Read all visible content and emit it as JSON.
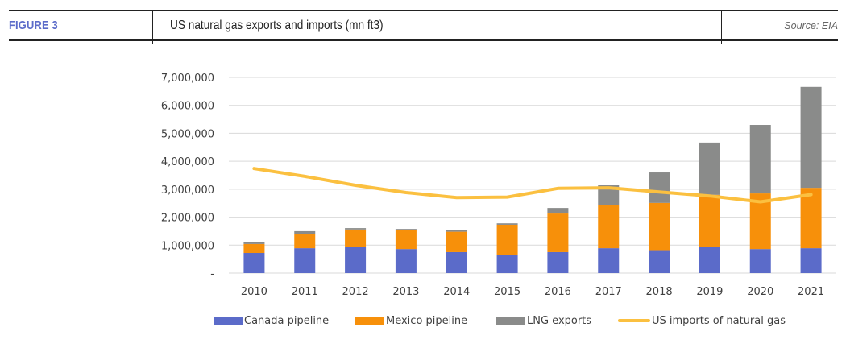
{
  "header": {
    "figure_label": "FIGURE 3",
    "title": "US natural gas exports and imports (mn ft3)",
    "source": "Source: EIA"
  },
  "colors": {
    "accent": "#5b6bc9",
    "canada": "#5b6bc9",
    "mexico": "#f7900a",
    "lng": "#8a8b8a",
    "imports": "#fbc040",
    "grid": "#d9d9d9"
  },
  "chart_data": {
    "type": "bar",
    "stacked": true,
    "title": "US natural gas exports and imports (mn ft3)",
    "xlabel": "",
    "ylabel": "",
    "ylim": [
      0,
      7000000
    ],
    "grid": true,
    "legend_position": "bottom",
    "y_ticks": [
      {
        "value": 0,
        "label": "-"
      },
      {
        "value": 1000000,
        "label": "1,000,000"
      },
      {
        "value": 2000000,
        "label": "2,000,000"
      },
      {
        "value": 3000000,
        "label": "3,000,000"
      },
      {
        "value": 4000000,
        "label": "4,000,000"
      },
      {
        "value": 5000000,
        "label": "5,000,000"
      },
      {
        "value": 6000000,
        "label": "6,000,000"
      },
      {
        "value": 7000000,
        "label": "7,000,000"
      }
    ],
    "categories": [
      "2010",
      "2011",
      "2012",
      "2013",
      "2014",
      "2015",
      "2016",
      "2017",
      "2018",
      "2019",
      "2020",
      "2021"
    ],
    "series": [
      {
        "name": "Canada pipeline",
        "kind": "bar",
        "color_key": "canada",
        "values": [
          720000,
          890000,
          950000,
          860000,
          750000,
          650000,
          750000,
          890000,
          820000,
          950000,
          860000,
          890000
        ]
      },
      {
        "name": "Mexico pipeline",
        "kind": "bar",
        "color_key": "mexico",
        "values": [
          320000,
          520000,
          610000,
          680000,
          730000,
          1080000,
          1380000,
          1530000,
          1690000,
          1850000,
          1990000,
          2160000
        ]
      },
      {
        "name": "LNG exports",
        "kind": "bar",
        "color_key": "lng",
        "values": [
          80000,
          90000,
          50000,
          40000,
          60000,
          50000,
          200000,
          720000,
          1090000,
          1870000,
          2450000,
          3610000
        ]
      },
      {
        "name": "US imports of natural gas",
        "kind": "line",
        "color_key": "imports",
        "values": [
          3740000,
          3460000,
          3140000,
          2880000,
          2700000,
          2720000,
          3030000,
          3050000,
          2900000,
          2760000,
          2550000,
          2810000
        ]
      }
    ]
  }
}
